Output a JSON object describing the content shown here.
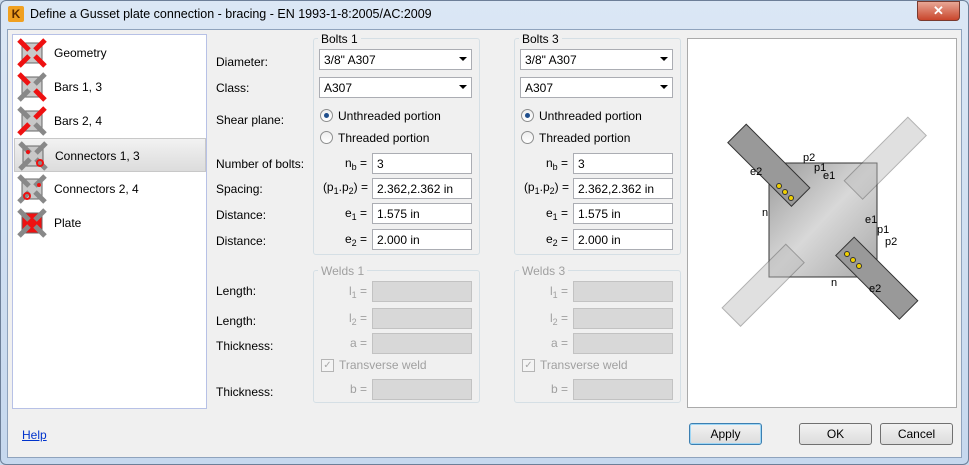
{
  "window": {
    "title": "Define a Gusset plate connection - bracing  - EN 1993-1-8:2005/AC:2009",
    "close_label": "✕"
  },
  "nav": {
    "items": [
      {
        "label": "Geometry",
        "icon": "geometry-icon"
      },
      {
        "label": "Bars 1, 3",
        "icon": "bars-13-icon"
      },
      {
        "label": "Bars 2, 4",
        "icon": "bars-24-icon"
      },
      {
        "label": "Connectors 1, 3",
        "icon": "connectors-13-icon",
        "selected": true
      },
      {
        "label": "Connectors 2, 4",
        "icon": "connectors-24-icon"
      },
      {
        "label": "Plate",
        "icon": "plate-icon"
      }
    ]
  },
  "labels": {
    "diameter": "Diameter:",
    "class": "Class:",
    "shear_plane": "Shear plane:",
    "number_of_bolts": "Number of bolts:",
    "spacing": "Spacing:",
    "distance1": "Distance:",
    "distance2": "Distance:",
    "length1": "Length:",
    "length2": "Length:",
    "thickness1": "Thickness:",
    "thickness2": "Thickness:"
  },
  "symbols": {
    "nb": "n",
    "nb_sub": "b",
    "eq": " =",
    "spacing": "(p",
    "spacing_sub1": "1",
    "spacing_mid": ".p",
    "spacing_sub2": "2",
    "spacing_end": ") =",
    "e": "e",
    "e1_sub": "1",
    "e2_sub": "2",
    "l": "l",
    "l1_sub": "1",
    "l2_sub": "2",
    "a": "a =",
    "b": "b ="
  },
  "bolts1": {
    "title": "Bolts 1",
    "diameter": "3/8\" A307",
    "class": "A307",
    "radio_unthreaded": "Unthreaded portion",
    "radio_threaded": "Threaded portion",
    "selected": "Unthreaded portion",
    "number_of_bolts": "3",
    "spacing": "2.362,2.362 in",
    "e1": "1.575 in",
    "e2": "2.000 in"
  },
  "bolts3": {
    "title": "Bolts 3",
    "diameter": "3/8\" A307",
    "class": "A307",
    "radio_unthreaded": "Unthreaded portion",
    "radio_threaded": "Threaded portion",
    "selected": "Unthreaded portion",
    "number_of_bolts": "3",
    "spacing": "2.362,2.362 in",
    "e1": "1.575 in",
    "e2": "2.000 in"
  },
  "welds1": {
    "title": "Welds 1",
    "transverse_weld": "Transverse weld",
    "transverse_checked": true
  },
  "welds3": {
    "title": "Welds 3",
    "transverse_weld": "Transverse weld",
    "transverse_checked": true
  },
  "diagram": {
    "labels": {
      "p2": "p2",
      "p1": "p1",
      "e1": "e1",
      "e2": "e2",
      "n": "n"
    }
  },
  "footer": {
    "help": "Help",
    "apply": "Apply",
    "ok": "OK",
    "cancel": "Cancel"
  },
  "colors": {
    "accent": "#0033cc",
    "bolt": "#f0d000",
    "icon_red": "#ee1111"
  }
}
